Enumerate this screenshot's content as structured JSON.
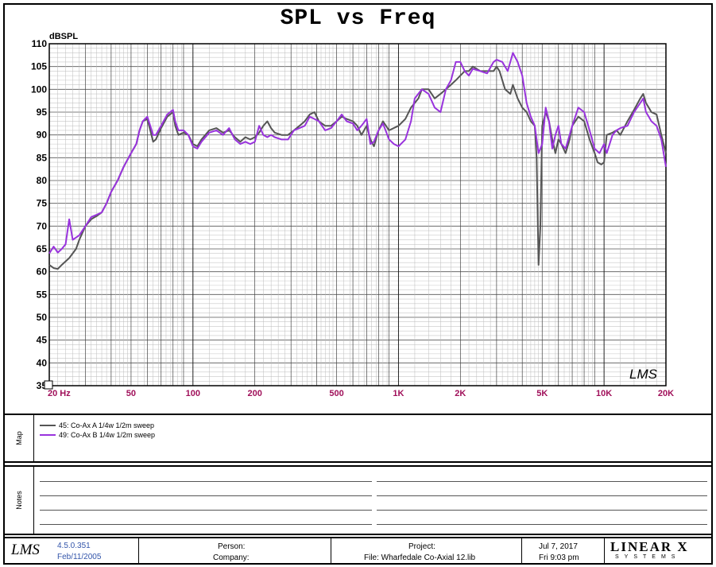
{
  "chart_data": {
    "type": "line",
    "title": "SPL vs Freq",
    "ylabel": "dBSPL",
    "xlabel": "",
    "x_scale": "log",
    "xlim": [
      20,
      20000
    ],
    "ylim": [
      35,
      110
    ],
    "yticks": [
      110,
      105,
      100,
      95,
      90,
      85,
      80,
      75,
      70,
      65,
      60,
      55,
      50,
      45,
      40,
      35
    ],
    "xtick_labels": [
      {
        "x": 20,
        "label": "20 Hz"
      },
      {
        "x": 50,
        "label": "50"
      },
      {
        "x": 100,
        "label": "100"
      },
      {
        "x": 200,
        "label": "200"
      },
      {
        "x": 500,
        "label": "500"
      },
      {
        "x": 1000,
        "label": "1K"
      },
      {
        "x": 2000,
        "label": "2K"
      },
      {
        "x": 5000,
        "label": "5K"
      },
      {
        "x": 10000,
        "label": "10K"
      },
      {
        "x": 20000,
        "label": "20K"
      }
    ],
    "grid": true,
    "series": [
      {
        "name": "45: Co-Ax A  1/4w 1/2m sweep",
        "color": "#555555",
        "points": [
          [
            20,
            61.5
          ],
          [
            21,
            60.8
          ],
          [
            22,
            60.6
          ],
          [
            23,
            61.5
          ],
          [
            25,
            63
          ],
          [
            27,
            65
          ],
          [
            28,
            67
          ],
          [
            30,
            70
          ],
          [
            32,
            71.5
          ],
          [
            34,
            72.2
          ],
          [
            36,
            73
          ],
          [
            38,
            75
          ],
          [
            40,
            77.5
          ],
          [
            43,
            80
          ],
          [
            46,
            83
          ],
          [
            50,
            86
          ],
          [
            53,
            88
          ],
          [
            55,
            91
          ],
          [
            57,
            93
          ],
          [
            60,
            93.5
          ],
          [
            62,
            91
          ],
          [
            64,
            88.5
          ],
          [
            66,
            89
          ],
          [
            70,
            91.5
          ],
          [
            75,
            94
          ],
          [
            80,
            95
          ],
          [
            82,
            92
          ],
          [
            85,
            90
          ],
          [
            90,
            90.5
          ],
          [
            95,
            90
          ],
          [
            100,
            88
          ],
          [
            105,
            87.5
          ],
          [
            110,
            89
          ],
          [
            120,
            91
          ],
          [
            130,
            91.5
          ],
          [
            140,
            90.5
          ],
          [
            150,
            91
          ],
          [
            160,
            89.5
          ],
          [
            170,
            88.5
          ],
          [
            180,
            89.5
          ],
          [
            190,
            89
          ],
          [
            200,
            89.5
          ],
          [
            210,
            90.5
          ],
          [
            220,
            92
          ],
          [
            230,
            93
          ],
          [
            240,
            91.5
          ],
          [
            250,
            90.5
          ],
          [
            270,
            90
          ],
          [
            290,
            90
          ],
          [
            310,
            91
          ],
          [
            330,
            92
          ],
          [
            350,
            93
          ],
          [
            370,
            94.5
          ],
          [
            390,
            95
          ],
          [
            410,
            93
          ],
          [
            440,
            92
          ],
          [
            470,
            92
          ],
          [
            500,
            93
          ],
          [
            530,
            94
          ],
          [
            560,
            93.5
          ],
          [
            600,
            93
          ],
          [
            630,
            92
          ],
          [
            660,
            90
          ],
          [
            700,
            92
          ],
          [
            730,
            89
          ],
          [
            760,
            87.5
          ],
          [
            800,
            91
          ],
          [
            840,
            93
          ],
          [
            900,
            91
          ],
          [
            1000,
            92
          ],
          [
            1080,
            93.5
          ],
          [
            1150,
            96
          ],
          [
            1250,
            98
          ],
          [
            1300,
            100
          ],
          [
            1400,
            100
          ],
          [
            1500,
            98
          ],
          [
            1600,
            99
          ],
          [
            1700,
            100
          ],
          [
            1800,
            101
          ],
          [
            1900,
            102
          ],
          [
            2000,
            103
          ],
          [
            2100,
            104
          ],
          [
            2200,
            104
          ],
          [
            2300,
            105
          ],
          [
            2500,
            104
          ],
          [
            2700,
            104
          ],
          [
            2900,
            104
          ],
          [
            3000,
            105
          ],
          [
            3100,
            104
          ],
          [
            3200,
            102
          ],
          [
            3300,
            100
          ],
          [
            3500,
            99
          ],
          [
            3600,
            101
          ],
          [
            3800,
            98
          ],
          [
            4000,
            96
          ],
          [
            4200,
            95
          ],
          [
            4400,
            93
          ],
          [
            4600,
            92
          ],
          [
            4700,
            85
          ],
          [
            4800,
            61.5
          ],
          [
            4900,
            70
          ],
          [
            5000,
            92
          ],
          [
            5200,
            95
          ],
          [
            5400,
            93
          ],
          [
            5600,
            89
          ],
          [
            5800,
            86
          ],
          [
            6000,
            89
          ],
          [
            6200,
            88
          ],
          [
            6500,
            86
          ],
          [
            6800,
            89
          ],
          [
            7000,
            92
          ],
          [
            7500,
            94
          ],
          [
            8000,
            93
          ],
          [
            8500,
            89
          ],
          [
            9000,
            86
          ],
          [
            9300,
            84
          ],
          [
            9700,
            83.5
          ],
          [
            10000,
            84
          ],
          [
            10300,
            90
          ],
          [
            11000,
            90.5
          ],
          [
            11500,
            91
          ],
          [
            12000,
            90
          ],
          [
            13000,
            93
          ],
          [
            14000,
            95.5
          ],
          [
            15000,
            98
          ],
          [
            15500,
            99
          ],
          [
            16000,
            97
          ],
          [
            16500,
            96
          ],
          [
            17000,
            95
          ],
          [
            18000,
            94.5
          ],
          [
            19000,
            90
          ],
          [
            20000,
            86
          ]
        ]
      },
      {
        "name": "49: Co-Ax B  1/4w 1/2m sweep",
        "color": "#9933dd",
        "points": [
          [
            20,
            64
          ],
          [
            21,
            65.5
          ],
          [
            22,
            64.2
          ],
          [
            23,
            65
          ],
          [
            24,
            66
          ],
          [
            25,
            71.5
          ],
          [
            26,
            67
          ],
          [
            27,
            67.5
          ],
          [
            28,
            68
          ],
          [
            30,
            70
          ],
          [
            32,
            72
          ],
          [
            34,
            72.5
          ],
          [
            36,
            73
          ],
          [
            38,
            75
          ],
          [
            40,
            77.5
          ],
          [
            43,
            80
          ],
          [
            46,
            83
          ],
          [
            50,
            86
          ],
          [
            53,
            88
          ],
          [
            55,
            91
          ],
          [
            57,
            93
          ],
          [
            60,
            94
          ],
          [
            62,
            92
          ],
          [
            64,
            90
          ],
          [
            66,
            90
          ],
          [
            70,
            92
          ],
          [
            75,
            94.5
          ],
          [
            80,
            95.5
          ],
          [
            82,
            93
          ],
          [
            85,
            91
          ],
          [
            90,
            91
          ],
          [
            95,
            90
          ],
          [
            100,
            87.5
          ],
          [
            105,
            87
          ],
          [
            110,
            88.5
          ],
          [
            120,
            90.5
          ],
          [
            130,
            91
          ],
          [
            140,
            90
          ],
          [
            150,
            91.5
          ],
          [
            160,
            89
          ],
          [
            170,
            88
          ],
          [
            180,
            88.5
          ],
          [
            190,
            88
          ],
          [
            200,
            88.5
          ],
          [
            210,
            92
          ],
          [
            220,
            90
          ],
          [
            230,
            89.5
          ],
          [
            240,
            90
          ],
          [
            250,
            89.5
          ],
          [
            270,
            89
          ],
          [
            290,
            89
          ],
          [
            310,
            91
          ],
          [
            330,
            91.5
          ],
          [
            350,
            92
          ],
          [
            370,
            94
          ],
          [
            390,
            93.5
          ],
          [
            410,
            93
          ],
          [
            440,
            91
          ],
          [
            470,
            91.5
          ],
          [
            500,
            93
          ],
          [
            530,
            94.5
          ],
          [
            560,
            93
          ],
          [
            600,
            92.5
          ],
          [
            630,
            91
          ],
          [
            660,
            92
          ],
          [
            700,
            93.5
          ],
          [
            730,
            88
          ],
          [
            760,
            88.5
          ],
          [
            800,
            91
          ],
          [
            840,
            92.5
          ],
          [
            900,
            89
          ],
          [
            950,
            88
          ],
          [
            1000,
            87.5
          ],
          [
            1080,
            89
          ],
          [
            1150,
            93
          ],
          [
            1200,
            98
          ],
          [
            1300,
            100
          ],
          [
            1400,
            99
          ],
          [
            1500,
            96
          ],
          [
            1600,
            95
          ],
          [
            1700,
            100
          ],
          [
            1800,
            102
          ],
          [
            1900,
            106
          ],
          [
            2000,
            106
          ],
          [
            2100,
            104
          ],
          [
            2200,
            103
          ],
          [
            2300,
            104.5
          ],
          [
            2500,
            104
          ],
          [
            2700,
            103.5
          ],
          [
            2900,
            106
          ],
          [
            3000,
            106.5
          ],
          [
            3200,
            106
          ],
          [
            3400,
            104
          ],
          [
            3500,
            106
          ],
          [
            3600,
            108
          ],
          [
            3800,
            106
          ],
          [
            4000,
            103
          ],
          [
            4200,
            97
          ],
          [
            4400,
            94
          ],
          [
            4600,
            92
          ],
          [
            4800,
            86
          ],
          [
            5000,
            88
          ],
          [
            5200,
            96
          ],
          [
            5400,
            93
          ],
          [
            5600,
            87
          ],
          [
            5800,
            90
          ],
          [
            6000,
            92
          ],
          [
            6200,
            88
          ],
          [
            6500,
            87
          ],
          [
            6800,
            90
          ],
          [
            7000,
            92
          ],
          [
            7500,
            96
          ],
          [
            8000,
            95
          ],
          [
            8500,
            91
          ],
          [
            9000,
            87
          ],
          [
            9500,
            86
          ],
          [
            10000,
            88
          ],
          [
            10300,
            86
          ],
          [
            11000,
            90
          ],
          [
            11500,
            91
          ],
          [
            12000,
            91.5
          ],
          [
            13000,
            92
          ],
          [
            14000,
            95
          ],
          [
            15000,
            97
          ],
          [
            15500,
            98
          ],
          [
            16000,
            95
          ],
          [
            16500,
            94
          ],
          [
            17000,
            93
          ],
          [
            18000,
            92
          ],
          [
            19000,
            89
          ],
          [
            20000,
            83
          ]
        ]
      }
    ]
  },
  "watermark": "LMS",
  "panels": {
    "map_label": "Map",
    "notes_label": "Notes"
  },
  "footer": {
    "logo": "LMS",
    "version": "4.5.0.351",
    "build_date": "Feb/11/2005",
    "person_label": "Person:",
    "company_label": "Company:",
    "project_label": "Project:",
    "file_label": "File: Wharfedale Co-Axial 12.lib",
    "date": "Jul  7, 2017",
    "time": "Fri  9:03 pm",
    "brand": "LINEAR X",
    "brand_sub": "SYSTEMS"
  }
}
